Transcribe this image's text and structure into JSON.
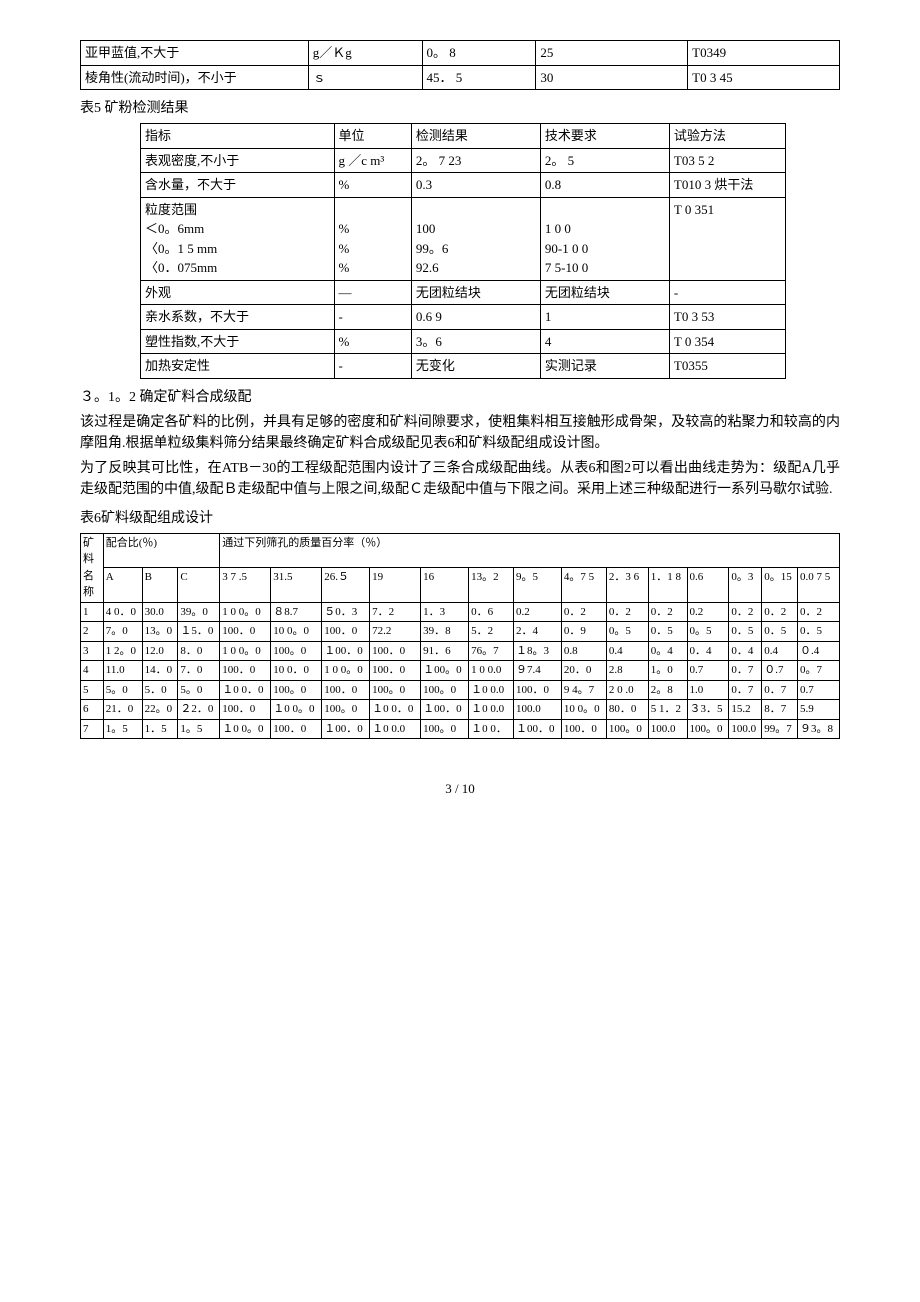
{
  "table1": {
    "rows": [
      [
        "亚甲蓝值,不大于",
        "g／Ｋg",
        "0。 8",
        "25",
        "T0349"
      ],
      [
        "棱角性(流动时间)，不小于",
        "ｓ",
        "45． 5",
        "30",
        "T0 3 45"
      ]
    ]
  },
  "table2_title": "表5 矿粉检测结果",
  "table2": {
    "headers": [
      "指标",
      "单位",
      "检测结果",
      "技术要求",
      "试验方法"
    ],
    "rows": [
      [
        "表观密度,不小于",
        "g ／c m³",
        "2。 7 23",
        "2。 5",
        "T03 5 2"
      ],
      [
        "含水量，不大于",
        "%",
        "0.3",
        "0.8",
        "T010 3 烘干法"
      ],
      [
        "粒度范围\n＜0。6mm\n〈0。1 5 mm\n〈0．075mm",
        "\n%\n%\n%",
        "\n100\n99。6\n92.6",
        "\n1 0 0\n90-1 0 0\n7 5-10 0",
        "T 0 351"
      ],
      [
        "外观",
        "—",
        "无团粒结块",
        "无团粒结块",
        "-"
      ],
      [
        "亲水系数，不大于",
        "-",
        "0.6 9",
        "1",
        "T0 3 53"
      ],
      [
        "塑性指数,不大于",
        "%",
        "3。6",
        "4",
        "T 0 354"
      ],
      [
        "加热安定性",
        "-",
        "无变化",
        "实测记录",
        "T0355"
      ]
    ]
  },
  "section_heading": "３。1。2 确定矿料合成级配",
  "paragraphs": [
    "该过程是确定各矿料的比例，并具有足够的密度和矿料间隙要求，使粗集料相互接触形成骨架，及较高的粘聚力和较高的内摩阻角.根据单粒级集料筛分结果最终确定矿料合成级配见表6和矿料级配组成设计图。",
    "为了反映其可比性，在ATB－30的工程级配范围内设计了三条合成级配曲线。从表6和图2可以看出曲线走势为：级配A几乎走级配范围的中值,级配Ｂ走级配中值与上限之间,级配Ｃ走级配中值与下限之间。采用上述三种级配进行一系列马歇尔试验."
  ],
  "table3_title": "表6矿料级配组成设计",
  "table3": {
    "header1_col1": "矿料名称",
    "header1_col2": "配合比(％)",
    "header1_col3": "通过下列筛孔的质量百分率（％）",
    "sub_headers_mix": [
      "A",
      "B",
      "C"
    ],
    "sub_headers_sieve": [
      "3 7 .5",
      "31.5",
      "26.５",
      "19",
      "16",
      "13。2",
      "9。5",
      "4。7 5",
      "2．3 6",
      "1．1 8",
      "0.6",
      "0。3",
      "0。15",
      "0.0 7 5"
    ],
    "rows": [
      [
        "1",
        "4 0．0",
        "30.0",
        "39。0",
        "1 0 0。0",
        "８8.7",
        "５0．3",
        "7．2",
        "1．3",
        "0．6",
        "0.2",
        "0．2",
        "0．2",
        "0．2",
        "0.2",
        "0．2",
        "0．2",
        "0．2"
      ],
      [
        "2",
        "7。0",
        "13。0",
        "１5．0",
        "100．0",
        "10 0。0",
        "100．0",
        "72.2",
        "39．8",
        "5．2",
        "2．4",
        "0．9",
        "0。5",
        "0．5",
        "0。5",
        "0．5",
        "0．5",
        "0．5"
      ],
      [
        "3",
        "1 2。0",
        "12.0",
        "8．0",
        "1 0 0。0",
        "100。0",
        "１00．0",
        "100．0",
        "91．6",
        "76。7",
        "１8。3",
        "0.8",
        "0.4",
        "0。4",
        "0．4",
        "0．4",
        "0.4",
        "０.4"
      ],
      [
        "4",
        "11.0",
        "14．0",
        "7．0",
        "100．0",
        "10 0．0",
        "1 0 0。0",
        "100．0",
        "１00。0",
        "1 0 0.0",
        "９7.4",
        "20．0",
        "2.8",
        "1。0",
        "0.7",
        "0．7",
        "０.7",
        "0。7"
      ],
      [
        "5",
        "5。0",
        "5．0",
        "5。0",
        "１0 0．0",
        "100。0",
        "100．0",
        "100。0",
        "100。0",
        "１0 0.0",
        "100．0",
        "9 4。7",
        "2 0 .0",
        "2。8",
        "1.0",
        "0．7",
        "0．7",
        "0.7"
      ],
      [
        "6",
        "21．0",
        "22。0",
        "２2．0",
        "100．0",
        "１0 0。0",
        "100。0",
        "１0 0．0",
        "１00．0",
        "１0 0.0",
        "100.0",
        "10 0。0",
        "80．0",
        "5 1．2",
        "３3．5",
        "15.2",
        "8．7",
        "5.9"
      ],
      [
        "7",
        "1。5",
        "1．5",
        "1。5",
        "１0 0。0",
        "100．0",
        "１00．0",
        "１0 0.0",
        "100。0",
        "１0 0．",
        "１00．0",
        "100．0",
        "100。0",
        "100.0",
        "100。0",
        "100.0",
        "99。7",
        "９3。8"
      ]
    ]
  },
  "footer": "3 / 10"
}
